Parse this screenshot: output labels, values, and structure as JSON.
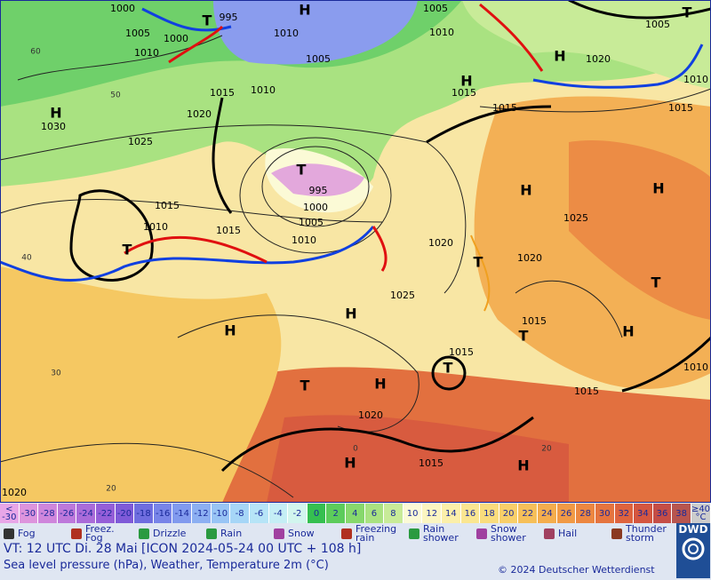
{
  "map": {
    "labels": [
      "H",
      "1005",
      "1000",
      "995",
      "1005",
      "1000",
      "1010",
      "1010",
      "1010",
      "1005",
      "T",
      "T",
      "H",
      "1020",
      "1010",
      "H",
      "1015",
      "1015",
      "1015",
      "1005",
      "1015",
      "1010",
      "1020",
      "H",
      "1030",
      "1025",
      "T",
      "995",
      "1000",
      "1005",
      "1010",
      "H",
      "H",
      "1025",
      "1015",
      "1010",
      "1015",
      "T",
      "1020",
      "T",
      "1020",
      "1025",
      "H",
      "H",
      "1015",
      "T",
      "T",
      "H",
      "1015",
      "T",
      "T",
      "H",
      "1015",
      "1020",
      "H",
      "1015",
      "H",
      "1020",
      "1010",
      "60",
      "50",
      "40",
      "30",
      "20",
      "0",
      "20"
    ]
  },
  "scale": {
    "items": [
      {
        "label": "<\n-30",
        "color": "#e8a6e8"
      },
      {
        "label": "-30",
        "color": "#dd94dd"
      },
      {
        "label": "-28",
        "color": "#cf86dc"
      },
      {
        "label": "-26",
        "color": "#bd78db"
      },
      {
        "label": "-24",
        "color": "#aa6bd9"
      },
      {
        "label": "-22",
        "color": "#955ed8"
      },
      {
        "label": "-20",
        "color": "#7f5ad8"
      },
      {
        "label": "-18",
        "color": "#6f6ddf"
      },
      {
        "label": "-16",
        "color": "#7884e8"
      },
      {
        "label": "-14",
        "color": "#819aee"
      },
      {
        "label": "-12",
        "color": "#8caff2"
      },
      {
        "label": "-10",
        "color": "#98c4f5"
      },
      {
        "label": "-8",
        "color": "#a6d6f7"
      },
      {
        "label": "-6",
        "color": "#b6e4f7"
      },
      {
        "label": "-4",
        "color": "#c5eef5"
      },
      {
        "label": "-2",
        "color": "#d2f5ee"
      },
      {
        "label": "0",
        "color": "#35bf50"
      },
      {
        "label": "2",
        "color": "#5ccc5b"
      },
      {
        "label": "4",
        "color": "#87d86c"
      },
      {
        "label": "6",
        "color": "#a9e280"
      },
      {
        "label": "8",
        "color": "#c8eb98"
      },
      {
        "label": "10",
        "color": "#fbfad6"
      },
      {
        "label": "12",
        "color": "#fbf5c1"
      },
      {
        "label": "14",
        "color": "#fbefaa"
      },
      {
        "label": "16",
        "color": "#fae691"
      },
      {
        "label": "18",
        "color": "#f9dc7c"
      },
      {
        "label": "20",
        "color": "#f8cf69"
      },
      {
        "label": "22",
        "color": "#f6bf59"
      },
      {
        "label": "24",
        "color": "#f4ad4d"
      },
      {
        "label": "26",
        "color": "#f19a45"
      },
      {
        "label": "28",
        "color": "#ec8741"
      },
      {
        "label": "30",
        "color": "#e5743f"
      },
      {
        "label": "32",
        "color": "#de633e"
      },
      {
        "label": "34",
        "color": "#d45640"
      },
      {
        "label": "36",
        "color": "#c54d46"
      },
      {
        "label": "38",
        "color": "#b7554f"
      },
      {
        "label": "≥40\n°C",
        "color": "#cccccc"
      }
    ]
  },
  "legend": {
    "items": [
      "Fog",
      "Freez.\nFog",
      "Drizzle",
      "Rain",
      "Snow",
      "Freezing\nrain",
      "Rain\nshower",
      "Snow\nshower",
      "Hail",
      "Thunder\nstorm"
    ]
  },
  "footer": {
    "valid_time": "VT: 12 UTC Di.  28 Mai [ICON 2024-05-24  00 UTC + 108 h]",
    "description": "Sea level pressure (hPa), Weather, Temperature 2m (°C)",
    "copyright": "© 2024 Deutscher Wetterdienst",
    "logo": "DWD"
  }
}
